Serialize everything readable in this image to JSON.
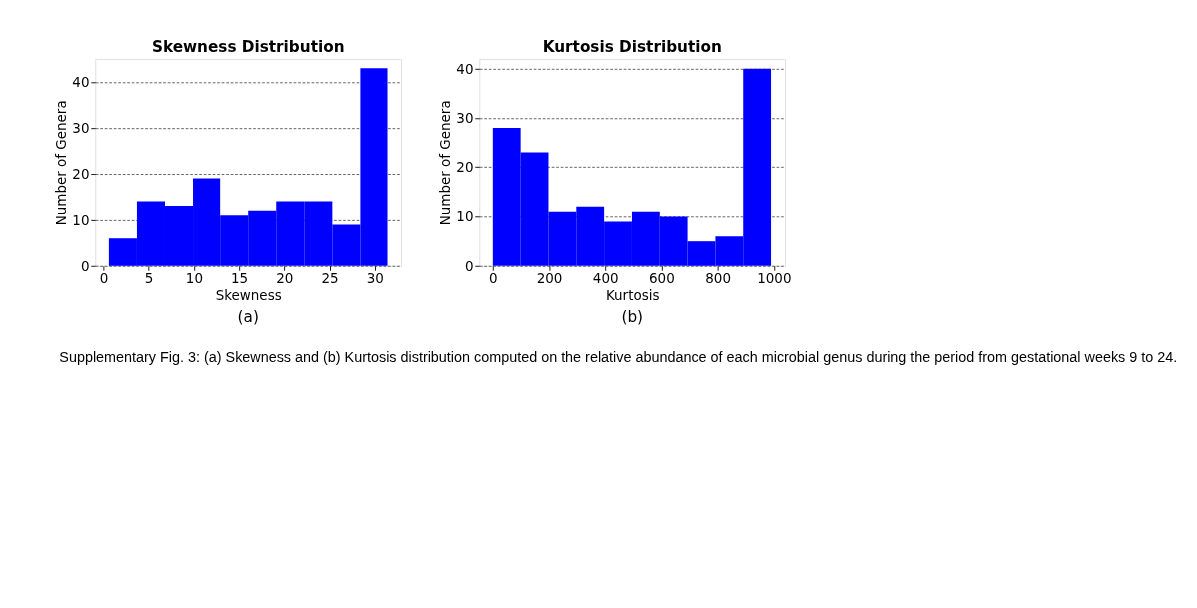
{
  "chart_data": [
    {
      "type": "histogram",
      "title": "Skewness Distribution",
      "xlabel": "Skewness",
      "ylabel": "Number of Genera",
      "bins": [
        0.6,
        3.7,
        6.8,
        9.9,
        12.9,
        16.0,
        19.1,
        22.2,
        25.3,
        28.4,
        31.4
      ],
      "values": [
        6,
        14,
        13,
        19,
        11,
        12,
        14,
        14,
        9,
        43
      ],
      "color": "#0000ff",
      "xlim": [
        -0.9,
        32.9
      ],
      "ylim": [
        0,
        45
      ],
      "xticks": [
        0,
        5,
        10,
        15,
        20,
        25,
        30
      ],
      "yticks": [
        0,
        10,
        20,
        30,
        40
      ],
      "grid": "y",
      "annotations": [
        "(a)",
        "Supplementary Fig. 3: (a) Skewness and (b) Kurtosis distribution computed on the relative abundance of each microbial genus during the period from gestational weeks 9 to 24."
      ]
    },
    {
      "type": "histogram",
      "title": "Kurtosis Distribution",
      "xlabel": "Kurtosis",
      "ylabel": "Number of Genera",
      "bins": [
        0,
        99,
        198,
        297,
        396,
        495,
        594,
        693,
        792,
        891,
        990
      ],
      "values": [
        28,
        23,
        11,
        12,
        9,
        11,
        10,
        5,
        6,
        40
      ],
      "color": "#0000ff",
      "xlim": [
        -48,
        1040
      ],
      "ylim": [
        0,
        42
      ],
      "xticks": [
        0,
        200,
        400,
        600,
        800,
        1000
      ],
      "yticks": [
        0,
        10,
        20,
        30,
        40
      ],
      "grid": "y",
      "annotations": [
        "(b)"
      ]
    }
  ]
}
